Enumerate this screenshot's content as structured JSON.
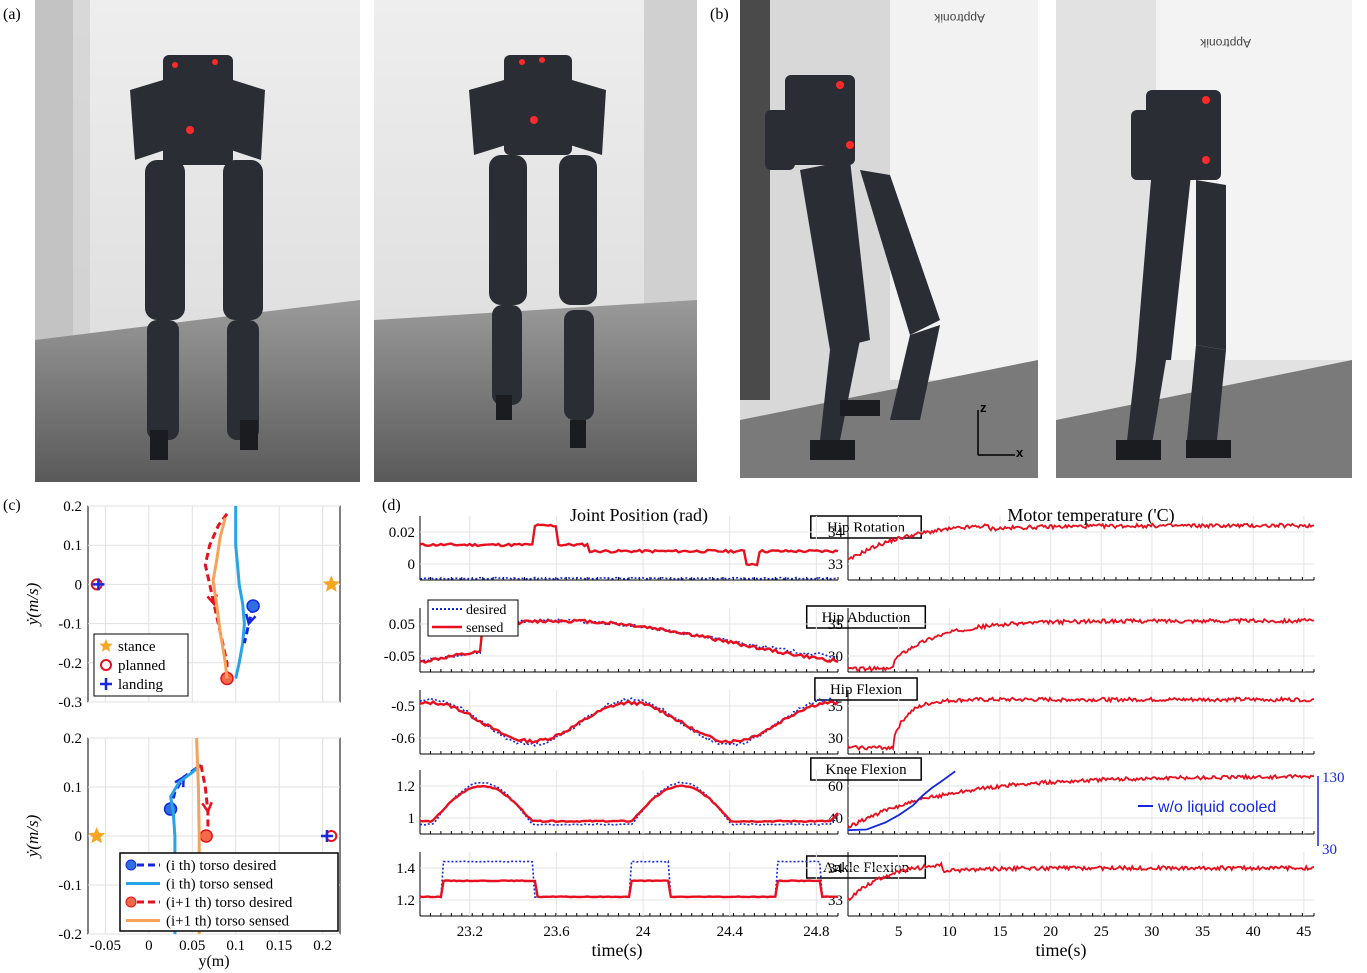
{
  "panels": {
    "a": "(a)",
    "b": "(b)",
    "c": "(c)",
    "d": "(d)"
  },
  "photos": {
    "wall_sign_1": "Apptronik",
    "wall_sign_2": "Apptronik",
    "axis_z": "z",
    "axis_x": "x"
  },
  "colors": {
    "red": "#e8101e",
    "blue": "#1428e0",
    "lightblue": "#27a3e8",
    "orange": "#f6a25a",
    "star": "#f5a623"
  },
  "chart_data": [
    {
      "type": "line",
      "id": "c-top",
      "xlim": [
        -0.07,
        0.22
      ],
      "ylim": [
        -0.3,
        0.2
      ],
      "ylabel": "ẏ(m/s)",
      "yticks": [
        "0.2",
        "0.1",
        "0",
        "-0.1",
        "-0.2",
        "-0.3"
      ],
      "legend": [
        "stance",
        "planned",
        "landing"
      ],
      "markers": {
        "stance": [
          [
            0.21,
            0
          ]
        ],
        "planned": [
          [
            -0.06,
            0
          ]
        ],
        "landing": [
          [
            -0.058,
            0
          ]
        ]
      },
      "series": [
        {
          "style": "red-dash",
          "points": [
            [
              0.09,
              0.18
            ],
            [
              0.08,
              0.15
            ],
            [
              0.07,
              0.1
            ],
            [
              0.065,
              0.05
            ],
            [
              0.07,
              0
            ],
            [
              0.075,
              -0.05
            ],
            [
              0.08,
              -0.1
            ],
            [
              0.085,
              -0.15
            ],
            [
              0.09,
              -0.2
            ],
            [
              0.09,
              -0.24
            ]
          ]
        },
        {
          "style": "orange",
          "points": [
            [
              0.088,
              0.17
            ],
            [
              0.082,
              0.12
            ],
            [
              0.078,
              0.06
            ],
            [
              0.074,
              0.01
            ],
            [
              0.078,
              -0.05
            ],
            [
              0.082,
              -0.12
            ],
            [
              0.088,
              -0.2
            ],
            [
              0.09,
              -0.24
            ]
          ]
        },
        {
          "style": "lightblue",
          "points": [
            [
              0.1,
              0.2
            ],
            [
              0.1,
              0.15
            ],
            [
              0.1,
              0.1
            ],
            [
              0.102,
              0.05
            ],
            [
              0.104,
              0
            ],
            [
              0.108,
              -0.05
            ],
            [
              0.11,
              -0.1
            ],
            [
              0.108,
              -0.15
            ],
            [
              0.104,
              -0.2
            ],
            [
              0.1,
              -0.24
            ]
          ]
        },
        {
          "style": "blue-dash",
          "points": [
            [
              0.12,
              -0.055
            ],
            [
              0.115,
              -0.1
            ],
            [
              0.11,
              -0.15
            ]
          ]
        }
      ]
    },
    {
      "type": "line",
      "id": "c-bottom",
      "xlim": [
        -0.07,
        0.22
      ],
      "ylim": [
        -0.2,
        0.2
      ],
      "xlabel": "y(m)",
      "ylabel": "ẏ(m/s)",
      "xticks": [
        "-0.05",
        "0",
        "0.05",
        "0.1",
        "0.15",
        "0.2"
      ],
      "yticks": [
        "0.2",
        "0.1",
        "0",
        "-0.1",
        "-0.2"
      ],
      "legend": [
        "(i th) torso desired",
        "(i th) torso sensed",
        "(i+1 th) torso desired",
        "(i+1 th) torso sensed"
      ],
      "markers": {
        "stance": [
          [
            -0.06,
            0
          ]
        ],
        "planned": [
          [
            0.21,
            0
          ]
        ],
        "landing": [
          [
            0.205,
            0
          ]
        ]
      },
      "series": [
        {
          "style": "blue-dash",
          "points": [
            [
              0.025,
              0.055
            ],
            [
              0.03,
              0.09
            ],
            [
              0.04,
              0.12
            ],
            [
              0.06,
              0.145
            ]
          ]
        },
        {
          "style": "lightblue",
          "points": [
            [
              0.03,
              -0.2
            ],
            [
              0.03,
              -0.1
            ],
            [
              0.03,
              0
            ],
            [
              0.028,
              0.05
            ],
            [
              0.025,
              0.08
            ],
            [
              0.035,
              0.11
            ],
            [
              0.05,
              0.13
            ],
            [
              0.06,
              0.145
            ]
          ]
        },
        {
          "style": "red-dash",
          "points": [
            [
              0.06,
              0.145
            ],
            [
              0.065,
              0.1
            ],
            [
              0.068,
              0.05
            ],
            [
              0.068,
              0.02
            ],
            [
              0.066,
              0
            ]
          ]
        },
        {
          "style": "orange",
          "points": [
            [
              0.055,
              0.2
            ],
            [
              0.057,
              0.1
            ],
            [
              0.058,
              0
            ],
            [
              0.058,
              -0.1
            ],
            [
              0.058,
              -0.2
            ]
          ]
        }
      ]
    },
    {
      "type": "line",
      "id": "d-joint",
      "title": "Joint Position (rad)",
      "xlabel": "time(s)",
      "xlim": [
        22.97,
        24.9
      ],
      "xticks": [
        "23.2",
        "23.6",
        "24",
        "24.4",
        "24.8"
      ],
      "legend": [
        "desired",
        "sensed"
      ],
      "rows": [
        {
          "yticks": [
            "0.02",
            "0"
          ]
        },
        {
          "yticks": [
            "0.05",
            "-0.05"
          ]
        },
        {
          "yticks": [
            "-0.5",
            "-0.6"
          ]
        },
        {
          "yticks": [
            "1.2",
            "1"
          ]
        },
        {
          "yticks": [
            "1.4",
            "1.2"
          ]
        }
      ]
    },
    {
      "type": "line",
      "id": "d-temp",
      "title": "Motor temperature ('C)",
      "xlabel": "time(s)",
      "xlim": [
        0,
        46
      ],
      "xticks": [
        "5",
        "10",
        "15",
        "20",
        "25",
        "30",
        "35",
        "40",
        "45"
      ],
      "rows": [
        {
          "yticks": [
            "34",
            "33"
          ]
        },
        {
          "yticks": [
            "35",
            "30"
          ]
        },
        {
          "yticks": [
            "35",
            "30"
          ]
        },
        {
          "yticks": [
            "60",
            "40"
          ],
          "right_ticks": [
            "130",
            "30"
          ],
          "annotation": "w/o liquid cooled"
        },
        {
          "yticks": [
            "34",
            "33"
          ]
        }
      ]
    }
  ],
  "joints": [
    "Hip Rotation",
    "Hip Abduction",
    "Hip Flexion",
    "Knee Flexion",
    "Ankle Flexion"
  ]
}
